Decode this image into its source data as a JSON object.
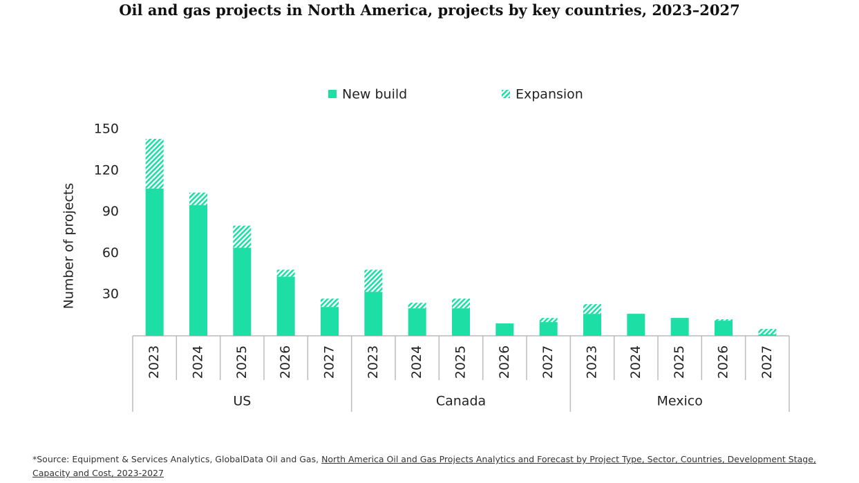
{
  "chart_data": {
    "type": "stacked-bar",
    "title": "Oil and gas projects in North America, projects by key countries, 2023–2027",
    "y_label": "Number of projects",
    "groups": [
      {
        "name": "US",
        "categories": [
          "2023",
          "2024",
          "2025",
          "2026",
          "2027"
        ]
      },
      {
        "name": "Canada",
        "categories": [
          "2023",
          "2024",
          "2025",
          "2026",
          "2027"
        ]
      },
      {
        "name": "Mexico",
        "categories": [
          "2023",
          "2024",
          "2025",
          "2026",
          "2027"
        ]
      }
    ],
    "series": [
      {
        "name": "New build",
        "color": "#1ddfa6",
        "pattern": "solid",
        "values": [
          107,
          95,
          64,
          43,
          21,
          32,
          20,
          20,
          9,
          10,
          16,
          16,
          13,
          11,
          1
        ]
      },
      {
        "name": "Expansion",
        "color": "#1ddfa6",
        "pattern": "hatch",
        "values": [
          36,
          9,
          16,
          5,
          6,
          16,
          4,
          7,
          0,
          3,
          7,
          0,
          0,
          1,
          4
        ]
      }
    ],
    "ylim": [
      0,
      150
    ],
    "yticks": [
      30,
      60,
      90,
      120,
      150
    ],
    "grid": false,
    "legend": "top"
  },
  "source": {
    "text": "*Source: Equipment & Services Analytics, GlobalData Oil and Gas, ",
    "link": "North America Oil and Gas Projects Analytics and Forecast by Project Type, Sector, Countries, Development Stage, Capacity and Cost, 2023-2027"
  }
}
